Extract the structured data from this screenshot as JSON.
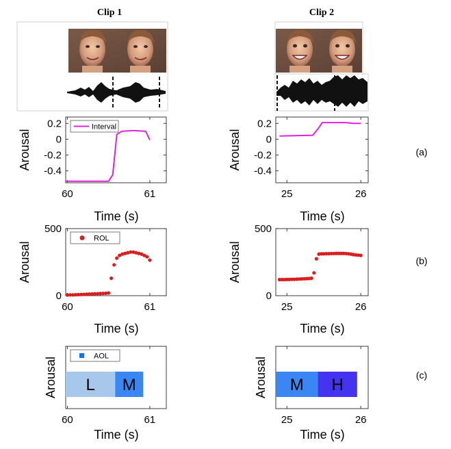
{
  "clip_titles": [
    "Clip 1",
    "Clip 2"
  ],
  "panel_labels": [
    "(a)",
    "(b)",
    "(c)"
  ],
  "colors": {
    "interval": "#e020e0",
    "rol": "#d81e1e",
    "aol_L": "#a7c8ea",
    "aol_M": "#3a86f2",
    "aol_H": "#4434f0",
    "legend_aol": "#1e6ee8"
  },
  "chart_data": [
    {
      "id": "a1",
      "type": "line",
      "clip": "Clip 1",
      "row": "(a)",
      "xlabel": "Time (s)",
      "ylabel": "Arousal",
      "xlim": [
        59.98,
        61.2
      ],
      "ylim": [
        -0.55,
        0.28
      ],
      "xticks": [
        60,
        61
      ],
      "yticks": [
        0.2,
        0,
        -0.2,
        -0.4
      ],
      "ytick_labels": [
        "0.2",
        "0",
        "-0.2",
        "-0.4"
      ],
      "legend": "Interval",
      "series": [
        {
          "name": "Interval",
          "color": "#e020e0",
          "x": [
            59.98,
            60.5,
            60.55,
            60.6,
            60.66,
            60.8,
            60.95,
            61.0
          ],
          "y": [
            -0.53,
            -0.53,
            -0.45,
            0.06,
            0.1,
            0.11,
            0.1,
            -0.01
          ]
        }
      ]
    },
    {
      "id": "a2",
      "type": "line",
      "clip": "Clip 2",
      "row": "(a)",
      "xlabel": "Time (s)",
      "ylabel": "Arousal",
      "xlim": [
        24.85,
        26.1
      ],
      "ylim": [
        -0.55,
        0.28
      ],
      "xticks": [
        25,
        26
      ],
      "yticks": [
        0.2,
        0,
        -0.2,
        -0.4
      ],
      "ytick_labels": [
        "0.2",
        "0",
        "-0.2",
        "-0.4"
      ],
      "series": [
        {
          "name": "",
          "color": "#e020e0",
          "x": [
            24.9,
            25.35,
            25.42,
            25.48,
            25.8,
            25.9,
            26.0
          ],
          "y": [
            0.04,
            0.05,
            0.13,
            0.21,
            0.21,
            0.2,
            0.2
          ]
        }
      ]
    },
    {
      "id": "b1",
      "type": "scatter",
      "clip": "Clip 1",
      "row": "(b)",
      "xlabel": "Time (s)",
      "ylabel": "Arousal",
      "xlim": [
        59.98,
        61.2
      ],
      "ylim": [
        0,
        500
      ],
      "xticks": [
        60,
        61
      ],
      "yticks": [
        0,
        500
      ],
      "ytick_labels": [
        "0",
        "500"
      ],
      "legend": "ROL",
      "series": [
        {
          "name": "ROL",
          "color": "#d81e1e",
          "x": [
            60.0,
            60.033,
            60.067,
            60.1,
            60.133,
            60.167,
            60.2,
            60.233,
            60.267,
            60.3,
            60.333,
            60.367,
            60.4,
            60.433,
            60.467,
            60.5,
            60.533,
            60.567,
            60.6,
            60.633,
            60.667,
            60.7,
            60.733,
            60.767,
            60.8,
            60.833,
            60.867,
            60.9,
            60.933,
            60.967,
            61.0
          ],
          "y": [
            5,
            6,
            6,
            7,
            8,
            9,
            10,
            11,
            12,
            13,
            14,
            15,
            16,
            17,
            18,
            20,
            130,
            230,
            280,
            300,
            310,
            315,
            320,
            325,
            325,
            320,
            315,
            310,
            300,
            290,
            265
          ]
        }
      ]
    },
    {
      "id": "b2",
      "type": "scatter",
      "clip": "Clip 2",
      "row": "(b)",
      "xlabel": "Time (s)",
      "ylabel": "Arousal",
      "xlim": [
        24.85,
        26.1
      ],
      "ylim": [
        0,
        500
      ],
      "xticks": [
        25,
        26
      ],
      "yticks": [
        0,
        500
      ],
      "ytick_labels": [
        "0",
        "500"
      ],
      "series": [
        {
          "name": "",
          "color": "#d81e1e",
          "x": [
            24.9,
            24.933,
            24.967,
            25.0,
            25.033,
            25.067,
            25.1,
            25.133,
            25.167,
            25.2,
            25.233,
            25.267,
            25.3,
            25.333,
            25.367,
            25.4,
            25.433,
            25.467,
            25.5,
            25.533,
            25.567,
            25.6,
            25.633,
            25.667,
            25.7,
            25.733,
            25.767,
            25.8,
            25.833,
            25.867,
            25.9,
            25.933,
            25.967,
            26.0
          ],
          "y": [
            120,
            120,
            120,
            121,
            121,
            122,
            122,
            123,
            124,
            125,
            126,
            127,
            128,
            130,
            170,
            275,
            310,
            312,
            312,
            313,
            313,
            314,
            314,
            315,
            315,
            315,
            315,
            314,
            312,
            310,
            306,
            304,
            302,
            300
          ]
        }
      ]
    },
    {
      "id": "c1",
      "type": "bar",
      "clip": "Clip 1",
      "row": "(c)",
      "xlabel": "Time (s)",
      "ylabel": "Arousal",
      "xlim": [
        59.98,
        61.2
      ],
      "xticks": [
        60,
        61
      ],
      "legend": "AOL",
      "segments": [
        {
          "label": "L",
          "start": 59.98,
          "end": 60.58,
          "color": "#a7c8ea"
        },
        {
          "label": "M",
          "start": 60.58,
          "end": 60.92,
          "color": "#3a86f2"
        }
      ]
    },
    {
      "id": "c2",
      "type": "bar",
      "clip": "Clip 2",
      "row": "(c)",
      "xlabel": "Time (s)",
      "ylabel": "Arousal",
      "xlim": [
        24.85,
        26.1
      ],
      "xticks": [
        25,
        26
      ],
      "segments": [
        {
          "label": "M",
          "start": 24.85,
          "end": 25.42,
          "color": "#3a86f2"
        },
        {
          "label": "H",
          "start": 25.42,
          "end": 25.95,
          "color": "#4434f0"
        }
      ]
    }
  ]
}
